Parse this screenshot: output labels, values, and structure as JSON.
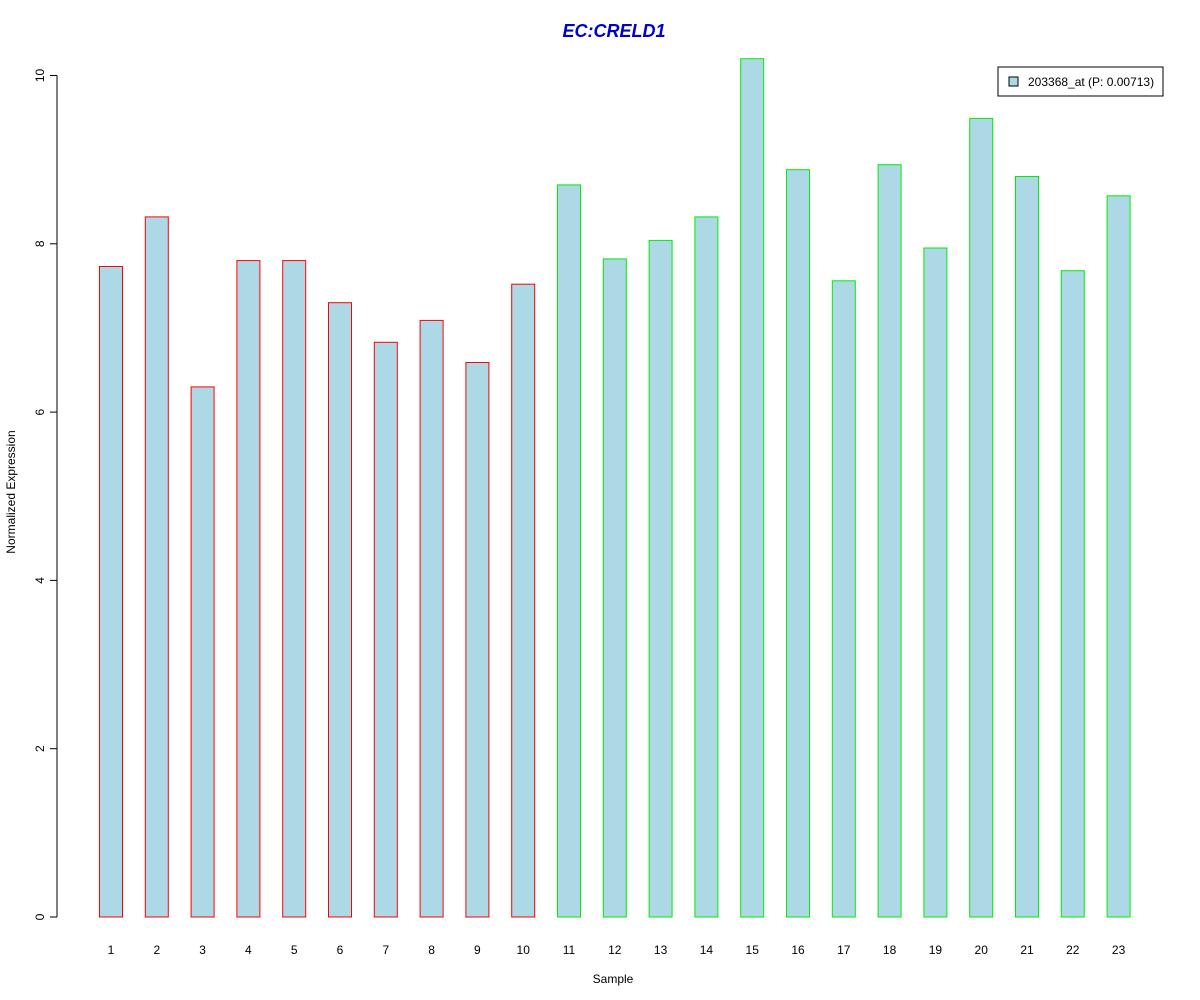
{
  "chart_data": {
    "type": "bar",
    "title": "EC:CRELD1",
    "xlabel": "Sample",
    "ylabel": "Normalized Expression",
    "ylim": [
      0,
      10.2
    ],
    "yticks": [
      0,
      2,
      4,
      6,
      8,
      10
    ],
    "grid": false,
    "legend_position": "top-right",
    "categories": [
      "1",
      "2",
      "3",
      "4",
      "5",
      "6",
      "7",
      "8",
      "9",
      "10",
      "11",
      "12",
      "13",
      "14",
      "15",
      "16",
      "17",
      "18",
      "19",
      "20",
      "21",
      "22",
      "23"
    ],
    "values": [
      7.73,
      8.32,
      6.3,
      7.8,
      7.8,
      7.3,
      6.83,
      7.09,
      6.59,
      7.52,
      8.7,
      7.82,
      8.04,
      8.32,
      10.2,
      8.88,
      7.56,
      8.94,
      7.95,
      9.49,
      8.8,
      7.68,
      8.57
    ],
    "groups": [
      1,
      1,
      1,
      1,
      1,
      1,
      1,
      1,
      1,
      1,
      2,
      2,
      2,
      2,
      2,
      2,
      2,
      2,
      2,
      2,
      2,
      2,
      2
    ],
    "series": [
      {
        "name": "203368_at (P: 0.00713)"
      }
    ]
  },
  "colors": {
    "title": "#0000cc",
    "bar_fill": "#add8e6",
    "group1_border": "#ff0000",
    "group2_border": "#00ee00",
    "axis": "#000000"
  }
}
